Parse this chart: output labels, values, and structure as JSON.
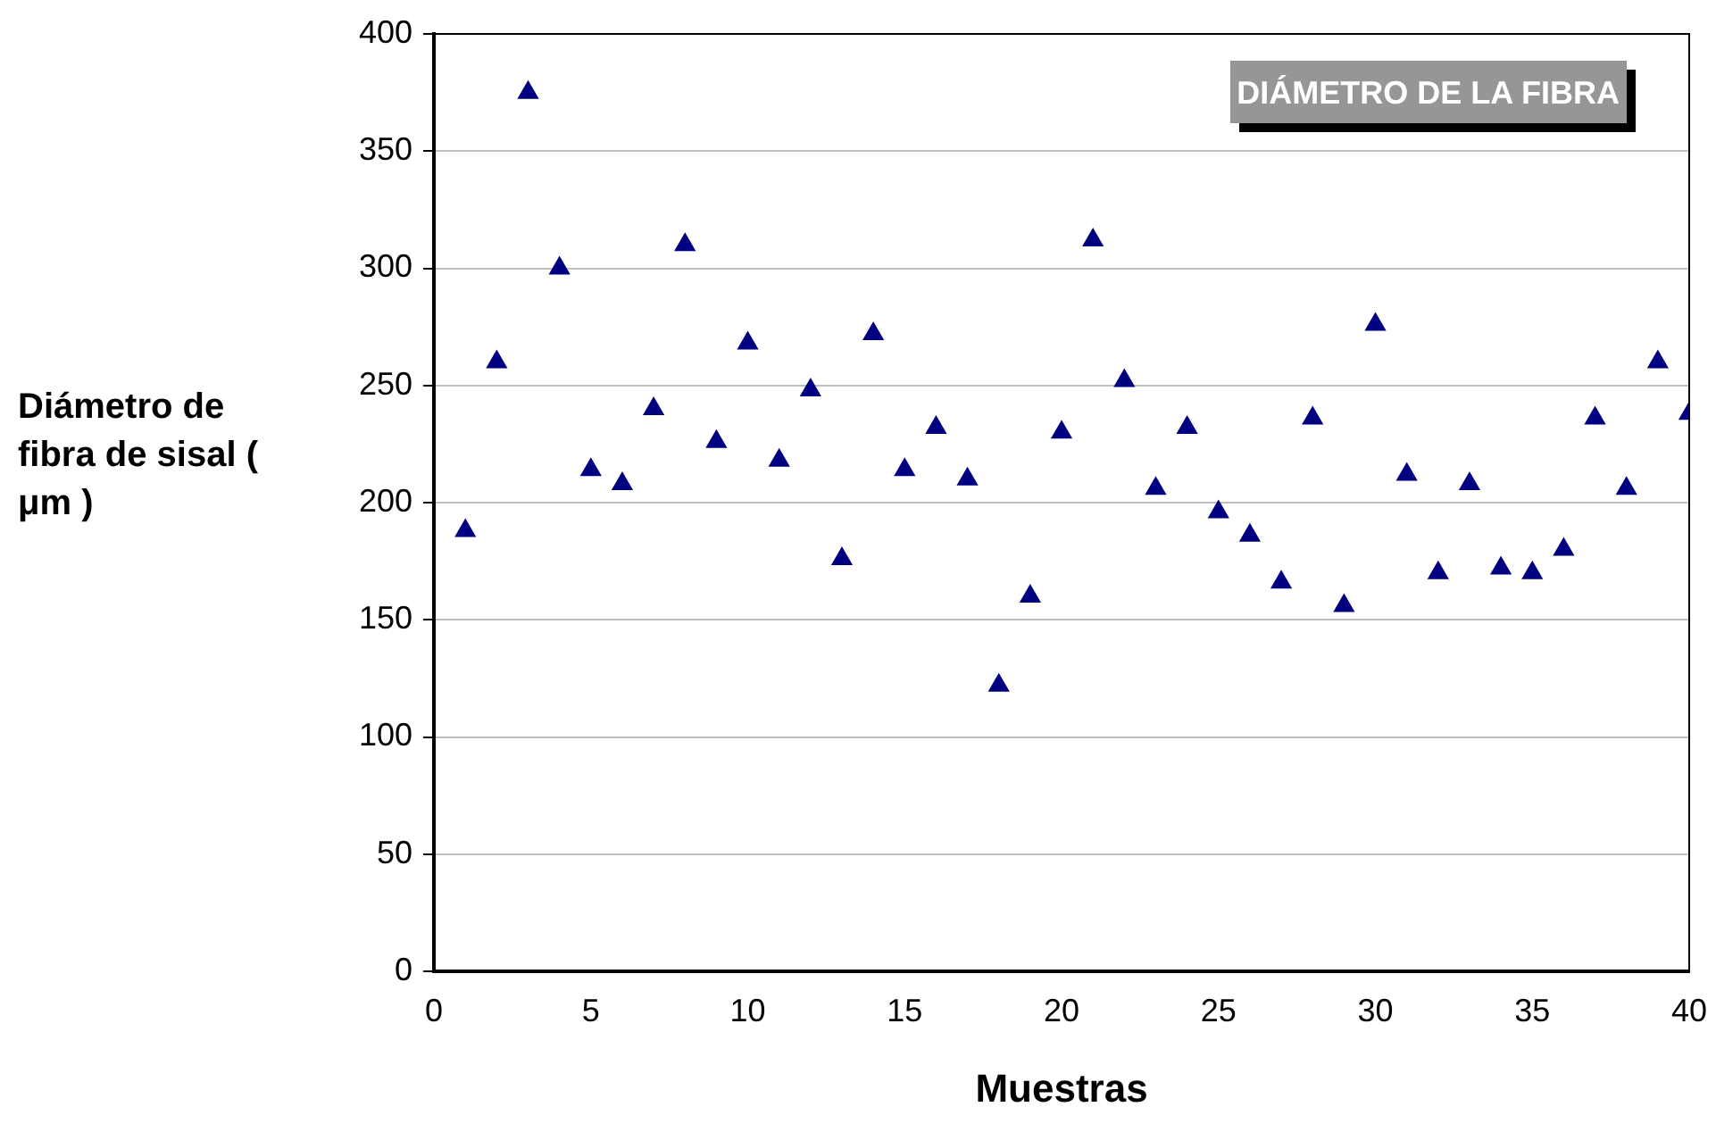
{
  "chart_data": {
    "type": "scatter",
    "title": "DIÁMETRO DE LA FIBRA",
    "xlabel": "Muestras",
    "ylabel": "Diámetro de fibra de sisal ( μm )",
    "x": [
      1,
      2,
      3,
      4,
      5,
      6,
      7,
      8,
      9,
      10,
      11,
      12,
      13,
      14,
      15,
      16,
      17,
      18,
      19,
      20,
      21,
      22,
      23,
      24,
      25,
      26,
      27,
      28,
      29,
      30,
      31,
      32,
      33,
      34,
      35,
      36,
      37,
      38,
      39,
      40
    ],
    "values": [
      188,
      260,
      375,
      300,
      214,
      208,
      240,
      310,
      226,
      268,
      218,
      248,
      176,
      272,
      214,
      232,
      210,
      122,
      160,
      230,
      312,
      252,
      206,
      232,
      196,
      186,
      166,
      236,
      156,
      276,
      212,
      170,
      208,
      172,
      170,
      180,
      236,
      206,
      260,
      238
    ],
    "color": "#000080",
    "marker": "triangle",
    "xlim": [
      0,
      40
    ],
    "xticks": [
      0,
      5,
      10,
      15,
      20,
      25,
      30,
      35,
      40
    ],
    "ylim": [
      0,
      400
    ],
    "yticks": [
      0,
      50,
      100,
      150,
      200,
      250,
      300,
      350,
      400
    ],
    "grid": "y",
    "legend": false
  }
}
